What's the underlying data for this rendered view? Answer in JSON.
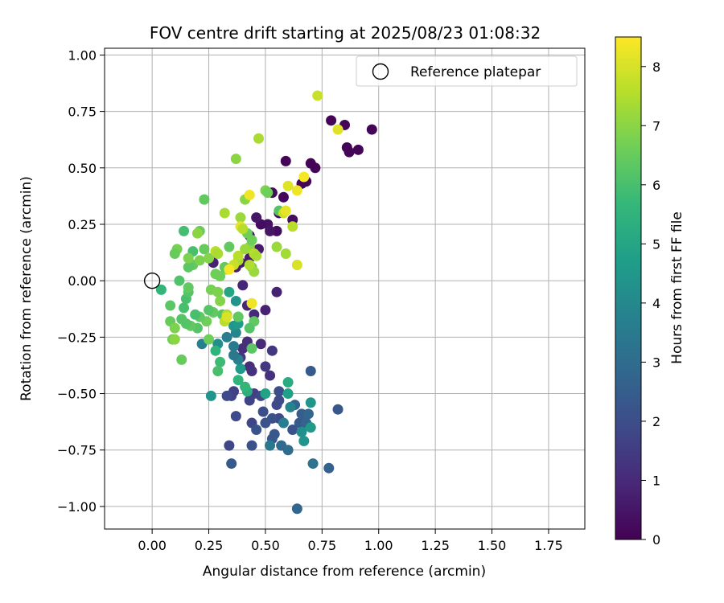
{
  "chart_data": {
    "type": "scatter",
    "title": "FOV centre drift starting at 2025/08/23 01:08:32",
    "xlabel": "Angular distance from reference (arcmin)",
    "ylabel": "Rotation from reference (arcmin)",
    "xlim": [
      -0.21,
      1.91
    ],
    "ylim": [
      -1.1,
      1.03
    ],
    "x_ticks": [
      0.0,
      0.25,
      0.5,
      0.75,
      1.0,
      1.25,
      1.5,
      1.75
    ],
    "x_tick_labels": [
      "0.00",
      "0.25",
      "0.50",
      "0.75",
      "1.00",
      "1.25",
      "1.50",
      "1.75"
    ],
    "y_ticks": [
      -1.0,
      -0.75,
      -0.5,
      -0.25,
      0.0,
      0.25,
      0.5,
      0.75,
      1.0
    ],
    "y_tick_labels": [
      "−1.00",
      "−0.75",
      "−0.50",
      "−0.25",
      "0.00",
      "0.25",
      "0.50",
      "0.75",
      "1.00"
    ],
    "grid": true,
    "colormap": "viridis",
    "colorbar": {
      "label": "Hours from first FF file",
      "range": [
        0,
        8.5
      ],
      "ticks": [
        0,
        1,
        2,
        3,
        4,
        5,
        6,
        7,
        8
      ]
    },
    "legend": {
      "placement": "upper-right",
      "entries": [
        {
          "label": "Reference platepar",
          "marker": "hollow-circle"
        }
      ]
    },
    "reference_point": [
      0,
      0
    ],
    "points": [
      [
        0.97,
        0.67,
        0.1
      ],
      [
        0.91,
        0.58,
        0.1
      ],
      [
        0.87,
        0.57,
        0.1
      ],
      [
        0.86,
        0.59,
        0.1
      ],
      [
        0.85,
        0.69,
        0.1
      ],
      [
        0.79,
        0.71,
        0.1
      ],
      [
        0.72,
        0.5,
        0.1
      ],
      [
        0.7,
        0.52,
        0.1
      ],
      [
        0.68,
        0.44,
        0.1
      ],
      [
        0.66,
        0.43,
        0.1
      ],
      [
        0.59,
        0.53,
        0.1
      ],
      [
        0.58,
        0.37,
        0.2
      ],
      [
        0.53,
        0.39,
        0.3
      ],
      [
        0.56,
        0.3,
        0.3
      ],
      [
        0.62,
        0.27,
        0.3
      ],
      [
        0.55,
        0.22,
        0.3
      ],
      [
        0.51,
        0.25,
        0.4
      ],
      [
        0.48,
        0.25,
        0.3
      ],
      [
        0.46,
        0.28,
        0.5
      ],
      [
        0.52,
        0.22,
        0.5
      ],
      [
        0.43,
        0.2,
        0.6
      ],
      [
        0.47,
        0.14,
        0.6
      ],
      [
        0.43,
        0.1,
        0.6
      ],
      [
        0.39,
        0.08,
        0.6
      ],
      [
        0.37,
        0.06,
        0.7
      ],
      [
        0.27,
        0.08,
        0.8
      ],
      [
        0.55,
        -0.05,
        0.8
      ],
      [
        0.4,
        -0.02,
        0.9
      ],
      [
        0.42,
        -0.11,
        0.9
      ],
      [
        0.5,
        -0.13,
        0.8
      ],
      [
        0.45,
        -0.15,
        1.0
      ],
      [
        0.48,
        -0.28,
        1.0
      ],
      [
        0.42,
        -0.27,
        1.1
      ],
      [
        0.4,
        -0.3,
        1.1
      ],
      [
        0.39,
        -0.34,
        1.3
      ],
      [
        0.43,
        -0.38,
        1.1
      ],
      [
        0.44,
        -0.4,
        1.2
      ],
      [
        0.53,
        -0.31,
        1.4
      ],
      [
        0.5,
        -0.38,
        1.4
      ],
      [
        0.52,
        -0.42,
        1.2
      ],
      [
        0.45,
        -0.5,
        1.6
      ],
      [
        0.36,
        -0.49,
        1.6
      ],
      [
        0.35,
        -0.51,
        1.7
      ],
      [
        0.33,
        -0.51,
        1.9
      ],
      [
        0.43,
        -0.53,
        1.7
      ],
      [
        0.48,
        -0.51,
        1.8
      ],
      [
        0.55,
        -0.55,
        1.9
      ],
      [
        0.56,
        -0.49,
        2.0
      ],
      [
        0.56,
        -0.61,
        1.9
      ],
      [
        0.53,
        -0.61,
        2.1
      ],
      [
        0.49,
        -0.58,
        2.0
      ],
      [
        0.5,
        -0.63,
        2.2
      ],
      [
        0.44,
        -0.63,
        1.8
      ],
      [
        0.37,
        -0.6,
        1.9
      ],
      [
        0.46,
        -0.66,
        2.2
      ],
      [
        0.54,
        -0.68,
        2.3
      ],
      [
        0.53,
        -0.7,
        2.3
      ],
      [
        0.62,
        -0.66,
        2.2
      ],
      [
        0.65,
        -0.63,
        2.4
      ],
      [
        0.66,
        -0.59,
        2.5
      ],
      [
        0.63,
        -0.55,
        2.7
      ],
      [
        0.69,
        -0.59,
        2.8
      ],
      [
        0.68,
        -0.63,
        2.7
      ],
      [
        0.7,
        -0.4,
        2.4
      ],
      [
        0.82,
        -0.57,
        2.3
      ],
      [
        0.44,
        -0.73,
        2.1
      ],
      [
        0.34,
        -0.73,
        1.8
      ],
      [
        0.35,
        -0.81,
        2.4
      ],
      [
        0.57,
        -0.73,
        2.9
      ],
      [
        0.6,
        -0.75,
        3.0
      ],
      [
        0.71,
        -0.81,
        3.2
      ],
      [
        0.78,
        -0.83,
        2.6
      ],
      [
        0.64,
        -1.01,
        2.8
      ],
      [
        0.52,
        -0.73,
        3.4
      ],
      [
        0.58,
        -0.63,
        3.6
      ],
      [
        0.61,
        -0.56,
        3.8
      ],
      [
        0.66,
        -0.67,
        4.2
      ],
      [
        0.67,
        -0.71,
        4.4
      ],
      [
        0.7,
        -0.65,
        4.6
      ],
      [
        0.7,
        -0.54,
        4.4
      ],
      [
        0.6,
        -0.5,
        4.8
      ],
      [
        0.6,
        -0.45,
        5.2
      ],
      [
        0.5,
        -0.5,
        4.9
      ],
      [
        0.42,
        -0.49,
        5.3
      ],
      [
        0.41,
        -0.47,
        5.6
      ],
      [
        0.38,
        -0.44,
        5.5
      ],
      [
        0.39,
        -0.39,
        4.6
      ],
      [
        0.38,
        -0.35,
        3.8
      ],
      [
        0.36,
        -0.33,
        3.4
      ],
      [
        0.36,
        -0.29,
        3.5
      ],
      [
        0.33,
        -0.25,
        3.6
      ],
      [
        0.37,
        -0.23,
        3.9
      ],
      [
        0.36,
        -0.2,
        4.4
      ],
      [
        0.38,
        -0.19,
        4.6
      ],
      [
        0.38,
        -0.16,
        5.0
      ],
      [
        0.29,
        -0.28,
        4.2
      ],
      [
        0.22,
        -0.28,
        3.7
      ],
      [
        0.26,
        -0.51,
        4.4
      ],
      [
        0.37,
        -0.09,
        4.4
      ],
      [
        0.34,
        -0.05,
        5.0
      ],
      [
        0.32,
        -0.16,
        5.2
      ],
      [
        0.28,
        -0.31,
        5.5
      ],
      [
        0.3,
        -0.36,
        5.8
      ],
      [
        0.29,
        -0.4,
        6.0
      ],
      [
        0.44,
        -0.3,
        6.3
      ],
      [
        0.45,
        -0.18,
        6.4
      ],
      [
        0.43,
        -0.21,
        6.2
      ],
      [
        0.38,
        -0.16,
        6.4
      ],
      [
        0.31,
        -0.15,
        6.2
      ],
      [
        0.25,
        -0.26,
        6.6
      ],
      [
        0.27,
        -0.14,
        6.4
      ],
      [
        0.25,
        -0.13,
        6.2
      ],
      [
        0.24,
        -0.18,
        6.6
      ],
      [
        0.21,
        -0.16,
        6.4
      ],
      [
        0.2,
        -0.21,
        6.2
      ],
      [
        0.19,
        -0.15,
        6.0
      ],
      [
        0.17,
        -0.2,
        6.4
      ],
      [
        0.15,
        -0.19,
        6.2
      ],
      [
        0.13,
        -0.17,
        6.2
      ],
      [
        0.14,
        -0.12,
        6.0
      ],
      [
        0.15,
        -0.08,
        6.0
      ],
      [
        0.16,
        -0.05,
        6.2
      ],
      [
        0.16,
        -0.03,
        6.4
      ],
      [
        0.12,
        0.0,
        6.1
      ],
      [
        0.08,
        -0.11,
        6.3
      ],
      [
        0.04,
        -0.04,
        5.6
      ],
      [
        0.08,
        -0.18,
        6.5
      ],
      [
        0.09,
        -0.26,
        6.6
      ],
      [
        0.1,
        -0.26,
        7.0
      ],
      [
        0.1,
        -0.21,
        6.8
      ],
      [
        0.13,
        -0.35,
        6.5
      ],
      [
        0.26,
        -0.04,
        6.7
      ],
      [
        0.28,
        0.03,
        6.6
      ],
      [
        0.29,
        -0.05,
        6.8
      ],
      [
        0.3,
        -0.09,
        6.9
      ],
      [
        0.33,
        -0.15,
        7.4
      ],
      [
        0.32,
        -0.18,
        7.6
      ],
      [
        0.33,
        0.05,
        7.2
      ],
      [
        0.3,
        0.02,
        6.6
      ],
      [
        0.34,
        0.15,
        6.4
      ],
      [
        0.32,
        0.06,
        6.4
      ],
      [
        0.21,
        0.22,
        6.5
      ],
      [
        0.18,
        0.13,
        6.0
      ],
      [
        0.18,
        0.07,
        6.4
      ],
      [
        0.16,
        0.06,
        6.3
      ],
      [
        0.16,
        0.1,
        6.8
      ],
      [
        0.14,
        0.22,
        5.9
      ],
      [
        0.11,
        0.14,
        6.7
      ],
      [
        0.1,
        0.12,
        6.5
      ],
      [
        0.2,
        0.21,
        7.0
      ],
      [
        0.21,
        0.09,
        6.8
      ],
      [
        0.23,
        0.14,
        6.5
      ],
      [
        0.25,
        0.1,
        6.9
      ],
      [
        0.28,
        0.13,
        7.6
      ],
      [
        0.29,
        0.12,
        7.4
      ],
      [
        0.23,
        0.36,
        6.4
      ],
      [
        0.32,
        0.3,
        7.4
      ],
      [
        0.38,
        0.09,
        7.4
      ],
      [
        0.38,
        0.11,
        7.6
      ],
      [
        0.39,
        0.28,
        7.2
      ],
      [
        0.41,
        0.36,
        7.0
      ],
      [
        0.43,
        0.38,
        8.3
      ],
      [
        0.42,
        0.21,
        6.6
      ],
      [
        0.43,
        0.15,
        7.0
      ],
      [
        0.44,
        0.18,
        6.6
      ],
      [
        0.41,
        0.14,
        7.2
      ],
      [
        0.45,
        0.12,
        7.6
      ],
      [
        0.44,
        0.06,
        6.8
      ],
      [
        0.45,
        0.04,
        7.2
      ],
      [
        0.46,
        0.11,
        7.4
      ],
      [
        0.43,
        0.07,
        7.5
      ],
      [
        0.47,
        0.63,
        7.4
      ],
      [
        0.37,
        0.54,
        7.0
      ],
      [
        0.39,
        0.24,
        8.2
      ],
      [
        0.4,
        0.23,
        7.6
      ],
      [
        0.44,
        -0.1,
        8.3
      ],
      [
        0.36,
        0.07,
        7.8
      ],
      [
        0.34,
        0.05,
        8.4
      ],
      [
        0.33,
        -0.16,
        8.0
      ],
      [
        0.5,
        0.4,
        6.8
      ],
      [
        0.51,
        0.39,
        6.6
      ],
      [
        0.55,
        0.15,
        7.2
      ],
      [
        0.56,
        0.31,
        6.2
      ],
      [
        0.58,
        0.3,
        7.8
      ],
      [
        0.59,
        0.31,
        8.2
      ],
      [
        0.6,
        0.42,
        8.1
      ],
      [
        0.59,
        0.12,
        7.3
      ],
      [
        0.62,
        0.24,
        7.6
      ],
      [
        0.64,
        0.4,
        8.3
      ],
      [
        0.67,
        0.46,
        8.4
      ],
      [
        0.64,
        0.07,
        8.0
      ],
      [
        0.73,
        0.82,
        7.8
      ],
      [
        0.82,
        0.67,
        8.1
      ],
      [
        0.56,
        -0.53,
        1.9
      ]
    ]
  }
}
